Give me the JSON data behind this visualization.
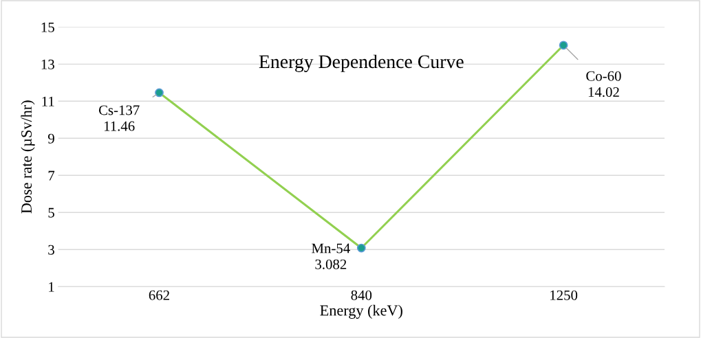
{
  "chart_data": {
    "type": "line",
    "title": "Energy Dependence Curve",
    "xlabel": "Energy (keV)",
    "ylabel": "Dose rate (µSv/hr)",
    "categories": [
      "662",
      "840",
      "1250"
    ],
    "series": [
      {
        "color": "#92d050",
        "values": [
          11.46,
          3.082,
          14.02
        ]
      }
    ],
    "ylim": [
      1,
      15
    ],
    "yticks": [
      1,
      3,
      5,
      7,
      9,
      11,
      13,
      15
    ],
    "grid": "y",
    "legend": false,
    "marker": "circle",
    "line_style": "solid",
    "annotations": [
      {
        "text": "Cs-137\n11.46",
        "x": "662",
        "y": 11.46
      },
      {
        "text": "Mn-54\n3.082",
        "x": "840",
        "y": 3.082
      },
      {
        "text": "Co-60\n14.02",
        "x": "1250",
        "y": 14.02
      }
    ]
  }
}
